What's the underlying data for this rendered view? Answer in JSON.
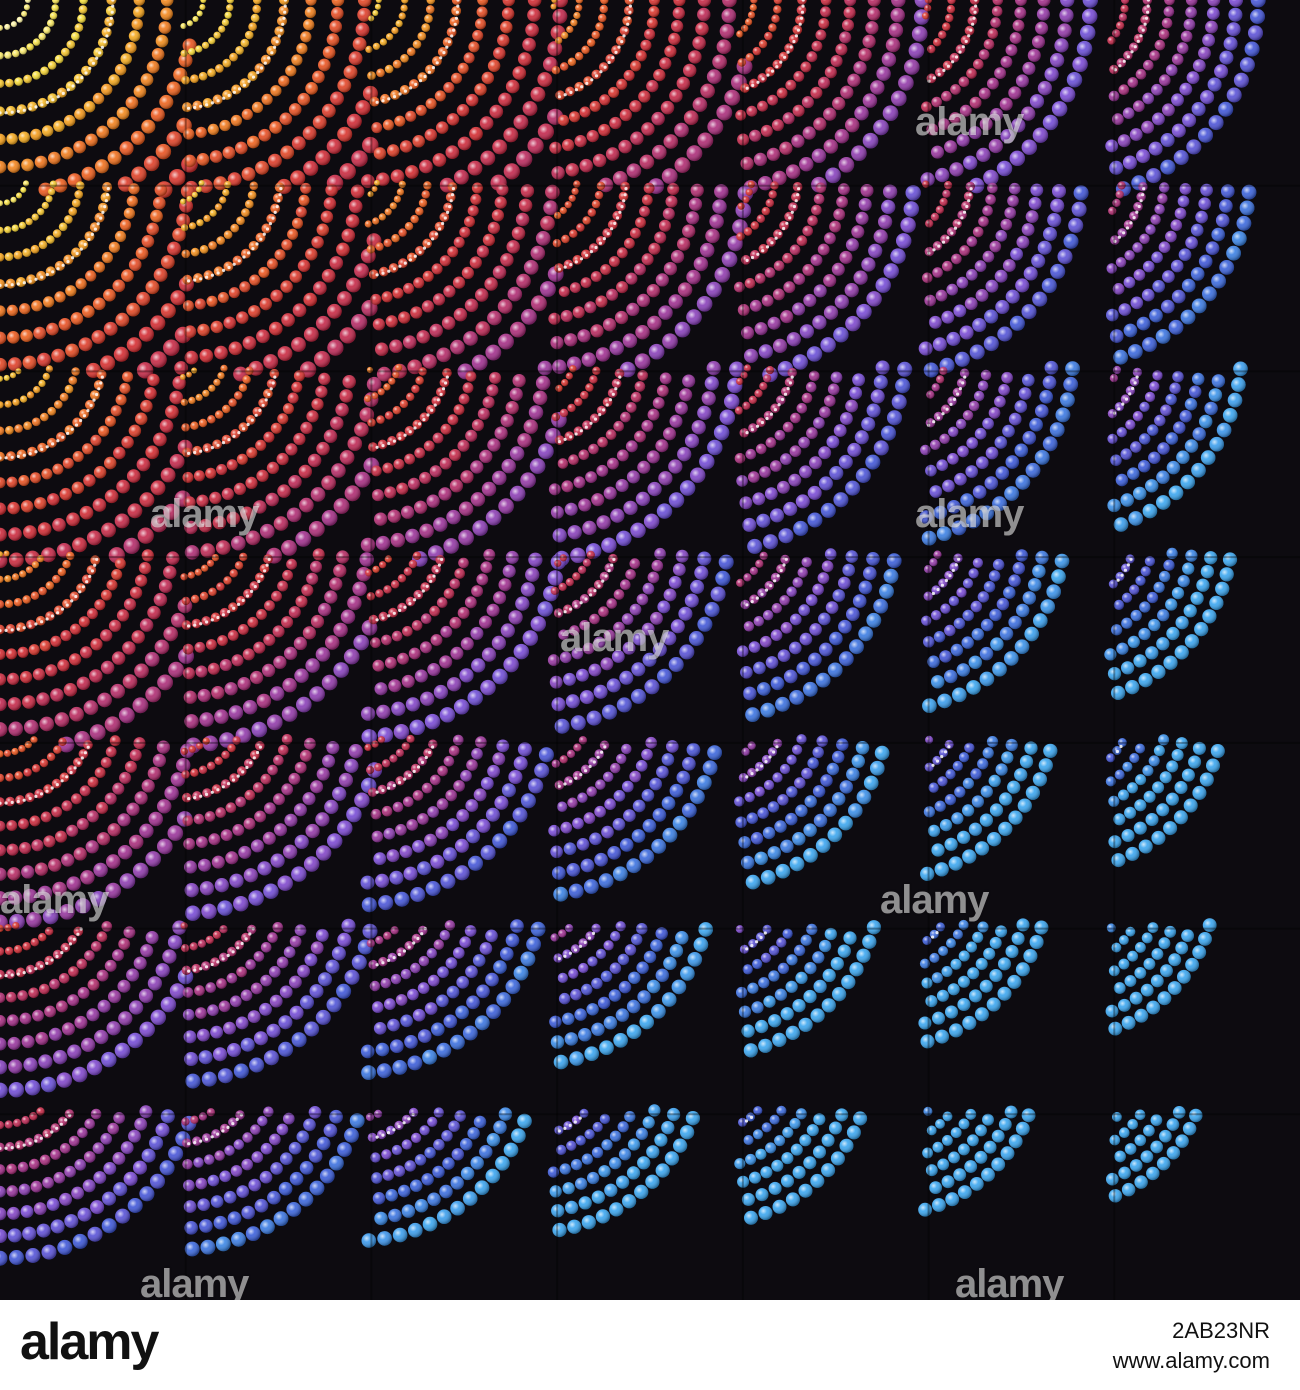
{
  "watermark": {
    "text": "alamy"
  },
  "footer": {
    "logo": "alamy",
    "image_id": "2AB23NR",
    "url": "www.alamy.com"
  },
  "artwork": {
    "grid_rows": 7,
    "grid_cols": 7,
    "background_color": "#0d0b10",
    "palette": [
      "#fff7a8",
      "#f7e03a",
      "#f6a21a",
      "#ee5a1c",
      "#d42a2f",
      "#c2264d",
      "#a02e8f",
      "#7a4ad6",
      "#3a57d8",
      "#3aa6f0"
    ]
  }
}
